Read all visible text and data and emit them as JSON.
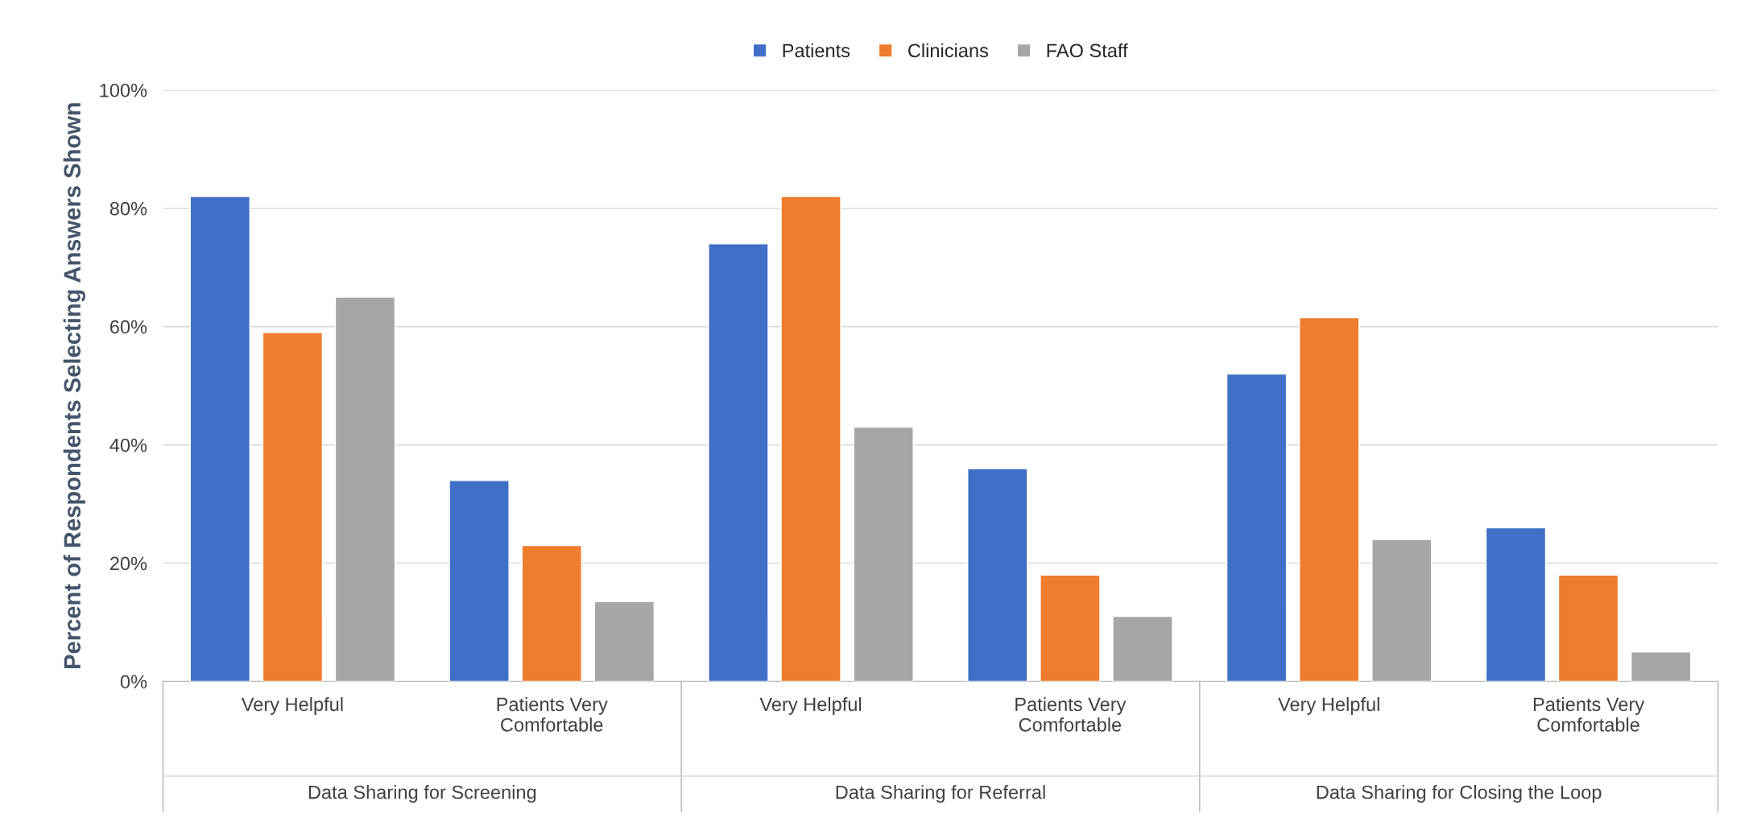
{
  "chart_data": {
    "type": "bar",
    "ylabel": "Percent of Respondents Selecting Answers Shown",
    "categories": [
      "Very Helpful",
      "Patients Very\nComfortable",
      "Very Helpful",
      "Patients Very\nComfortable",
      "Very Helpful",
      "Patients Very\nComfortable"
    ],
    "annotations": [
      "Data Sharing for Screening",
      "Data Sharing for Referral",
      "Data Sharing for Closing the Loop"
    ],
    "series": [
      {
        "name": "Patients",
        "color": "#3f6fc6",
        "values": [
          82,
          34,
          74,
          36,
          52,
          26
        ]
      },
      {
        "name": "Clinicians",
        "color": "#ee7d2e",
        "values": [
          59,
          23,
          82,
          18,
          61.5,
          18
        ]
      },
      {
        "name": "FAO Staff",
        "color": "#a6a6a6",
        "values": [
          65,
          13.5,
          43,
          11,
          24,
          5
        ]
      }
    ],
    "ylim": [
      0,
      100
    ],
    "yticks": [
      {
        "value": 0,
        "label": "0%"
      },
      {
        "value": 20,
        "label": "20%"
      },
      {
        "value": 40,
        "label": "40%"
      },
      {
        "value": 60,
        "label": "60%"
      },
      {
        "value": 80,
        "label": "80%"
      },
      {
        "value": 100,
        "label": "100%"
      }
    ],
    "grid": "y",
    "legend": "top"
  }
}
